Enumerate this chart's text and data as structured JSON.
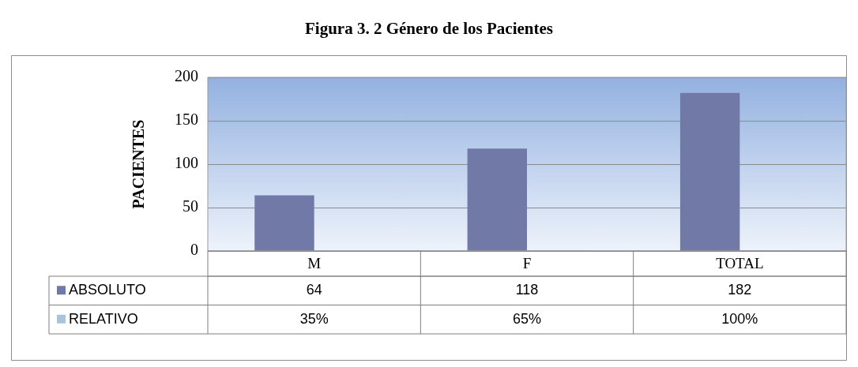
{
  "chart_data": {
    "type": "bar",
    "title": "Figura 3. 2 Género de los Pacientes",
    "ylabel": "PACIENTES",
    "categories": [
      "M",
      "F",
      "TOTAL"
    ],
    "series": [
      {
        "name": "ABSOLUTO",
        "color": "#717aa6",
        "values": [
          64,
          118,
          182
        ],
        "value_labels": [
          "64",
          "118",
          "182"
        ]
      },
      {
        "name": "RELATIVO",
        "color": "#a9c3da",
        "values": [
          0.35,
          0.65,
          1
        ],
        "value_labels": [
          "35%",
          "65%",
          "100%"
        ]
      }
    ],
    "ylim": [
      0,
      200
    ],
    "yticks": [
      0,
      50,
      100,
      150,
      200
    ],
    "grid": "y",
    "legend": "bottom"
  }
}
